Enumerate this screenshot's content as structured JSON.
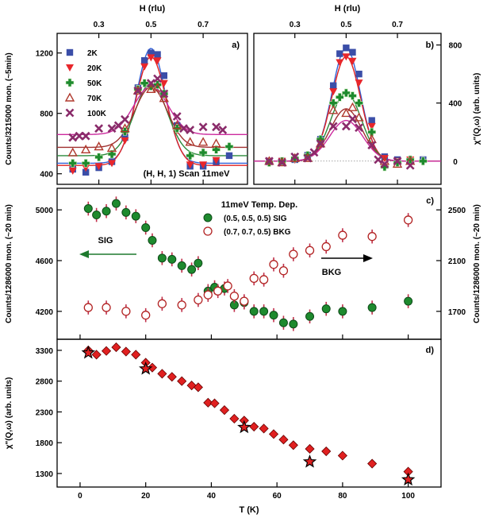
{
  "colors": {
    "2K": "#3b4ea8",
    "20K": "#e8262b",
    "50K": "#1e8a2e",
    "70K": "#b03a2e",
    "100K": "#8a2b6a",
    "fit_2K": "#3060d8",
    "fit_20K": "#e02020",
    "fit_50K": "#2c8a3c",
    "fit_70K": "#a03030",
    "fit_100K": "#cc2a9e",
    "sig": "#1e8a2e",
    "bkg": "#b22222",
    "errbar": "#c0304a",
    "diamond": "#e02020",
    "arrow_sig": "#1e7a2e"
  },
  "chart_data": [
    {
      "id": "a",
      "type": "scatter",
      "panel_label": "a)",
      "top_axis_label": "H (rlu)",
      "top_ticks": [
        "0.3",
        "0.5",
        "0.7"
      ],
      "ylabel": "Counts/3215000 mon. (~5min)",
      "yticks": [
        "400",
        "800",
        "1200"
      ],
      "xlim": [
        0.14,
        0.87
      ],
      "ylim": [
        330,
        1330
      ],
      "annotation": "(H, H, 1) Scan 11meV",
      "legend": [
        "2K",
        "20K",
        "50K",
        "70K",
        "100K"
      ],
      "series": [
        {
          "name": "2K",
          "marker": "square",
          "x": [
            0.2,
            0.25,
            0.3,
            0.35,
            0.4,
            0.45,
            0.475,
            0.5,
            0.525,
            0.55,
            0.6,
            0.65,
            0.7,
            0.75,
            0.8
          ],
          "y": [
            430,
            410,
            440,
            480,
            640,
            970,
            1150,
            1200,
            1190,
            1050,
            720,
            450,
            450,
            480,
            520
          ]
        },
        {
          "name": "20K",
          "marker": "triangle-down",
          "x": [
            0.2,
            0.25,
            0.3,
            0.35,
            0.4,
            0.45,
            0.475,
            0.5,
            0.525,
            0.55,
            0.6,
            0.65,
            0.7,
            0.75
          ],
          "y": [
            420,
            440,
            450,
            470,
            620,
            950,
            1110,
            1170,
            1150,
            1000,
            690,
            460,
            460,
            490
          ]
        },
        {
          "name": "50K",
          "marker": "cross",
          "x": [
            0.2,
            0.25,
            0.3,
            0.35,
            0.4,
            0.45,
            0.475,
            0.5,
            0.525,
            0.55,
            0.6,
            0.65,
            0.7,
            0.75,
            0.8
          ],
          "y": [
            470,
            470,
            510,
            530,
            680,
            960,
            1000,
            980,
            990,
            930,
            700,
            520,
            540,
            560,
            580
          ]
        },
        {
          "name": "70K",
          "marker": "triangle-up",
          "x": [
            0.2,
            0.25,
            0.3,
            0.35,
            0.4,
            0.45,
            0.5,
            0.525,
            0.55,
            0.6,
            0.65,
            0.7,
            0.75
          ],
          "y": [
            540,
            560,
            580,
            570,
            700,
            950,
            960,
            970,
            900,
            720,
            610,
            610,
            600
          ]
        },
        {
          "name": "100K",
          "marker": "x",
          "x": [
            0.2,
            0.225,
            0.25,
            0.3,
            0.35,
            0.375,
            0.4,
            0.45,
            0.5,
            0.525,
            0.55,
            0.6,
            0.625,
            0.65,
            0.7,
            0.75,
            0.775
          ],
          "y": [
            640,
            650,
            650,
            700,
            700,
            720,
            760,
            950,
            1000,
            1030,
            930,
            780,
            700,
            690,
            710,
            710,
            690
          ]
        }
      ],
      "fits": [
        {
          "name": "2K",
          "base": 470,
          "amp": 760,
          "sigma": 0.055
        },
        {
          "name": "20K",
          "base": 455,
          "amp": 720,
          "sigma": 0.058
        },
        {
          "name": "50K",
          "base": 520,
          "amp": 480,
          "sigma": 0.062
        },
        {
          "name": "70K",
          "base": 575,
          "amp": 400,
          "sigma": 0.062
        },
        {
          "name": "100K",
          "base": 660,
          "amp": 320,
          "sigma": 0.065
        }
      ]
    },
    {
      "id": "b",
      "type": "scatter",
      "panel_label": "b)",
      "top_axis_label": "H (rlu)",
      "top_ticks": [
        "0.3",
        "0.5",
        "0.7"
      ],
      "ylabel": "χ\"(Q,ω) (arb. units)",
      "yticks": [
        "0",
        "400",
        "800"
      ],
      "xlim": [
        0.14,
        0.87
      ],
      "ylim": [
        -160,
        880
      ],
      "series": [
        {
          "name": "2K",
          "marker": "square",
          "x": [
            0.2,
            0.25,
            0.3,
            0.35,
            0.4,
            0.45,
            0.475,
            0.5,
            0.525,
            0.55,
            0.6,
            0.65,
            0.7,
            0.75,
            0.8
          ],
          "y": [
            0,
            0,
            10,
            40,
            150,
            520,
            740,
            780,
            750,
            600,
            280,
            30,
            10,
            0,
            10
          ]
        },
        {
          "name": "20K",
          "marker": "triangle-down",
          "x": [
            0.2,
            0.25,
            0.3,
            0.35,
            0.4,
            0.45,
            0.475,
            0.5,
            0.525,
            0.55,
            0.6,
            0.65,
            0.7,
            0.75
          ],
          "y": [
            0,
            0,
            10,
            30,
            130,
            480,
            680,
            720,
            690,
            540,
            240,
            20,
            0,
            10
          ]
        },
        {
          "name": "50K",
          "marker": "cross",
          "x": [
            0.2,
            0.25,
            0.3,
            0.35,
            0.4,
            0.45,
            0.475,
            0.5,
            0.525,
            0.55,
            0.6,
            0.65,
            0.7,
            0.75,
            0.8
          ],
          "y": [
            -10,
            0,
            20,
            40,
            150,
            400,
            440,
            470,
            450,
            400,
            200,
            -40,
            -10,
            10,
            0
          ]
        },
        {
          "name": "70K",
          "marker": "triangle-up",
          "x": [
            0.2,
            0.25,
            0.3,
            0.35,
            0.4,
            0.45,
            0.5,
            0.525,
            0.55,
            0.6,
            0.65,
            0.7,
            0.75
          ],
          "y": [
            0,
            -10,
            20,
            20,
            120,
            350,
            330,
            370,
            300,
            150,
            0,
            -20,
            0
          ]
        },
        {
          "name": "100K",
          "marker": "x",
          "x": [
            0.2,
            0.25,
            0.3,
            0.35,
            0.375,
            0.4,
            0.45,
            0.5,
            0.525,
            0.55,
            0.6,
            0.625,
            0.65,
            0.7,
            0.75
          ],
          "y": [
            0,
            -10,
            30,
            20,
            60,
            120,
            240,
            240,
            290,
            230,
            110,
            10,
            -20,
            0,
            -30
          ]
        }
      ],
      "fits": [
        {
          "name": "2K",
          "base": 0,
          "amp": 780,
          "sigma": 0.055
        },
        {
          "name": "20K",
          "base": 0,
          "amp": 720,
          "sigma": 0.056
        },
        {
          "name": "50K",
          "base": 0,
          "amp": 470,
          "sigma": 0.06
        },
        {
          "name": "70K",
          "base": 0,
          "amp": 360,
          "sigma": 0.062
        },
        {
          "name": "100K",
          "base": 0,
          "amp": 280,
          "sigma": 0.065
        }
      ]
    },
    {
      "id": "c",
      "type": "scatter",
      "panel_label": "c)",
      "title": "11meV Temp. Dep.",
      "ylabel": "Counts/1286000 mon. (~20 min)",
      "y2label": "Counts/1286000 mon. (~20 min)",
      "yticks": [
        "4200",
        "4600",
        "5000"
      ],
      "y2ticks": [
        "1700",
        "2100",
        "2500"
      ],
      "xlim": [
        -7,
        110
      ],
      "ylim": [
        3980,
        5170
      ],
      "y2lim": [
        1480,
        2670
      ],
      "legend": [
        "(0.5, 0.5, 0.5) SIG",
        "(0.7, 0.7, 0.5) BKG"
      ],
      "arrow_labels": [
        "SIG",
        "BKG"
      ],
      "series": [
        {
          "name": "(0.5, 0.5, 0.5) SIG",
          "axis": "left",
          "marker": "filled-circle",
          "err": 55,
          "x": [
            2.5,
            5,
            8,
            11,
            14,
            17,
            20,
            22,
            25,
            28,
            31,
            34,
            36,
            39,
            41,
            44,
            47,
            50,
            53,
            56,
            59,
            62,
            65,
            70,
            75,
            80,
            89,
            100
          ],
          "y": [
            5010,
            4960,
            4990,
            5050,
            4980,
            4950,
            4860,
            4760,
            4620,
            4610,
            4560,
            4530,
            4580,
            4360,
            4390,
            4380,
            4250,
            4270,
            4200,
            4200,
            4170,
            4110,
            4100,
            4160,
            4220,
            4200,
            4230,
            4280
          ]
        },
        {
          "name": "(0.7, 0.7, 0.5) BKG",
          "axis": "right",
          "marker": "open-circle",
          "err": 55,
          "x": [
            2.5,
            8,
            14,
            20,
            25,
            31,
            36,
            39,
            42,
            45,
            47,
            50,
            53,
            56,
            59,
            62,
            65,
            70,
            75,
            80,
            89,
            100
          ],
          "y": [
            1730,
            1730,
            1700,
            1670,
            1760,
            1750,
            1790,
            1830,
            1860,
            1900,
            1820,
            1780,
            1960,
            1950,
            2070,
            2020,
            2150,
            2180,
            2210,
            2300,
            2290,
            2420
          ]
        }
      ]
    },
    {
      "id": "d",
      "type": "scatter",
      "panel_label": "d)",
      "xlabel": "T (K)",
      "ylabel": "χ\"(Q,ω) (arb. units)",
      "xticks": [
        "0",
        "20",
        "40",
        "60",
        "80",
        "100"
      ],
      "yticks": [
        "1300",
        "1800",
        "2300",
        "2800",
        "3300"
      ],
      "xlim": [
        -7,
        110
      ],
      "ylim": [
        1080,
        3480
      ],
      "series": [
        {
          "name": "diamonds",
          "marker": "diamond",
          "x": [
            2.5,
            5,
            8,
            11,
            14,
            17,
            20,
            22,
            25,
            28,
            31,
            34,
            36,
            39,
            41,
            44,
            47,
            50,
            53,
            56,
            59,
            62,
            65,
            70,
            75,
            80,
            89,
            100
          ],
          "y": [
            3300,
            3230,
            3290,
            3350,
            3280,
            3230,
            3100,
            3020,
            2920,
            2870,
            2800,
            2730,
            2700,
            2450,
            2440,
            2330,
            2190,
            2160,
            2060,
            2030,
            1940,
            1850,
            1760,
            1700,
            1660,
            1590,
            1460,
            1330
          ]
        },
        {
          "name": "stars",
          "marker": "star",
          "x": [
            2.5,
            20,
            50,
            70,
            100
          ],
          "y": [
            3260,
            3000,
            2050,
            1490,
            1200
          ]
        }
      ]
    }
  ]
}
